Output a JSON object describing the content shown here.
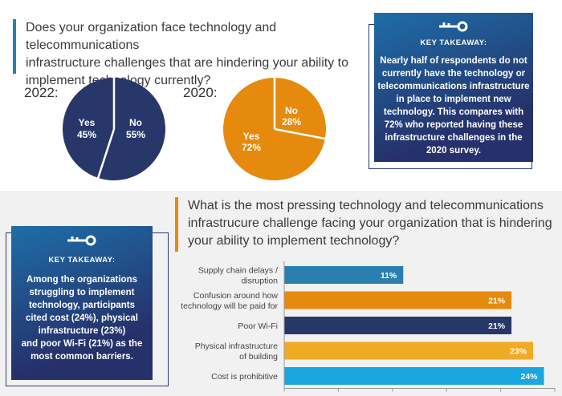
{
  "top_question": {
    "lines": [
      "Does your organization face technology and telecommunications",
      "infrastructure challenges that are hindering your ability to",
      "implement technology currently?"
    ]
  },
  "year_2022_label": "2022:",
  "year_2020_label": "2020:",
  "key_takeaway_1": {
    "title": "KEY TAKEAWAY:",
    "lines": [
      "Nearly half of respondents do not",
      "currently have the technology or",
      "telecommunications infrastructure",
      "in place to implement new",
      "technology. This compares with",
      "72% who reported having these",
      "infrastructure challenges in the",
      "2020 survey."
    ]
  },
  "bottom_question": {
    "lines": [
      "What is the most pressing technology and telecommunications",
      "infrastrucure challenge facing your organization that is hindering",
      "your ability to implement technology?"
    ]
  },
  "key_takeaway_2": {
    "title": "KEY TAKEAWAY:",
    "lines": [
      "Among the organizations",
      "struggling to implement",
      "technology, participants",
      "cited cost (24%), physical",
      "infrastructure (23%)",
      "and poor Wi-Fi (21%) as the",
      "most common barriers."
    ]
  },
  "colors": {
    "navy": "#283769",
    "orange": "#e58a0c",
    "teal": "#2a7fb0",
    "gold": "#f0ab23",
    "sky": "#1aa6de",
    "key_grad_start": "#1e6ea8",
    "key_grad_end": "#26306a"
  },
  "chart_data": [
    {
      "type": "pie",
      "title": "2022:",
      "slices": [
        {
          "label": "Yes",
          "value": 45,
          "value_label": "45%",
          "color": "#283769"
        },
        {
          "label": "No",
          "value": 55,
          "value_label": "55%",
          "color": "#283769"
        }
      ]
    },
    {
      "type": "pie",
      "title": "2020:",
      "slices": [
        {
          "label": "No",
          "value": 28,
          "value_label": "28%",
          "color": "#e58a0c"
        },
        {
          "label": "Yes",
          "value": 72,
          "value_label": "72%",
          "color": "#e58a0c"
        }
      ]
    },
    {
      "type": "bar",
      "orientation": "horizontal",
      "title": "What is the most pressing technology and telecommunications infrastrucure challenge facing your organization that is hindering your ability to implement technology?",
      "categories": [
        [
          "Supply chain delays /",
          "disruption"
        ],
        [
          "Confusion around how",
          "technology will be paid for"
        ],
        [
          "Poor Wi-Fi"
        ],
        [
          "Physical infrastructure",
          "of building"
        ],
        [
          "Cost is prohibitive"
        ]
      ],
      "values": [
        11,
        21,
        21,
        23,
        24
      ],
      "value_labels": [
        "11%",
        "21%",
        "21%",
        "23%",
        "24%"
      ],
      "bar_colors": [
        "#2a7fb0",
        "#e58a0c",
        "#283769",
        "#f0ab23",
        "#1aa6de"
      ],
      "xlim": [
        0,
        25
      ]
    }
  ]
}
